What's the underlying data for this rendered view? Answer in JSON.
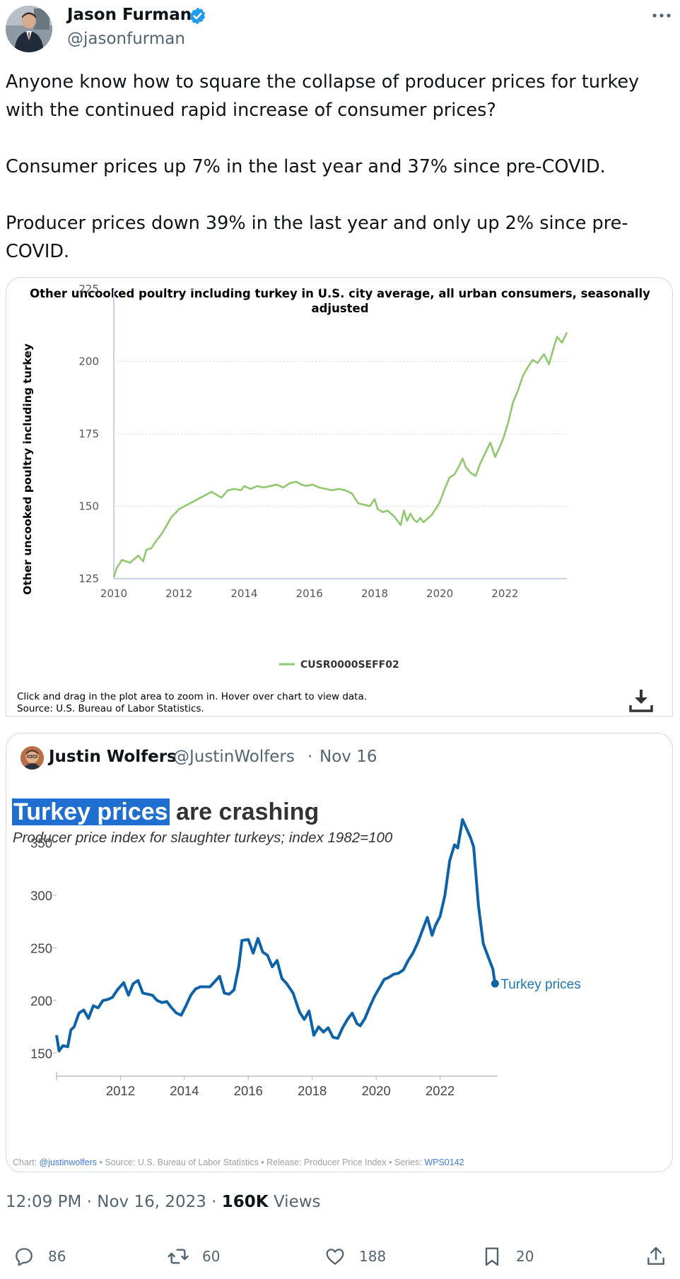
{
  "author": {
    "name": "Jason Furman",
    "handle": "@jasonfurman",
    "verified": true,
    "badge_color": "#1d9bf0"
  },
  "tweet": {
    "paragraphs": [
      "Anyone know how to square the collapse of producer prices for turkey with the continued rapid increase of consumer prices?",
      "Consumer prices up 7% in the last year and 37% since pre-COVID.",
      "Producer prices down 39% in the last year and only up 2% since pre-COVID."
    ]
  },
  "media": {
    "note_line1": "Click and drag in the plot area to zoom in. Hover over chart to view data.",
    "note_line2": "Source: U.S. Bureau of Labor Statistics.",
    "download_icon": "download-icon"
  },
  "quote": {
    "name": "Justin Wolfers",
    "handle": "@JustinWolfers",
    "separator": "·",
    "date": "Nov 16",
    "title_highlight": "Turkey prices",
    "title_rest": " are crashing",
    "subtitle": "Producer price index for slaughter turkeys; index 1982=100",
    "footer_chart_label": "Chart: ",
    "footer_chart_link": "@justinwolfers",
    "footer_middle": " • Source: U.S. Bureau of Labor Statistics • Release: Producer Price Index • Series: ",
    "footer_series_link": "WPS0142"
  },
  "meta": {
    "timestamp": "12:09 PM · Nov 16, 2023 · ",
    "views_count": "160K",
    "views_label": " Views"
  },
  "actions": {
    "replies": "86",
    "reposts": "60",
    "likes": "188",
    "bookmarks": "20"
  },
  "chart_data": [
    {
      "type": "line",
      "title": "Other uncooked poultry including turkey in U.S. city average, all urban consumers, seasonally adjusted",
      "ylabel": "Other uncooked poultry including turkey",
      "xlabel": "",
      "x_ticks": [
        2010,
        2012,
        2014,
        2016,
        2018,
        2020,
        2022
      ],
      "y_ticks": [
        125,
        150,
        175,
        200,
        225
      ],
      "xlim": [
        2010,
        2023.9
      ],
      "ylim": [
        125,
        225
      ],
      "grid": true,
      "legend": "bottom",
      "color": "#90c86e",
      "series": [
        {
          "name": "CUSR0000SEFF02",
          "x": [
            2010.0,
            2010.08,
            2010.25,
            2010.5,
            2010.75,
            2010.9,
            2011.0,
            2011.15,
            2011.3,
            2011.5,
            2011.75,
            2012.0,
            2012.25,
            2012.5,
            2012.75,
            2013.0,
            2013.15,
            2013.3,
            2013.5,
            2013.7,
            2013.9,
            2014.0,
            2014.2,
            2014.4,
            2014.6,
            2014.8,
            2015.0,
            2015.2,
            2015.4,
            2015.6,
            2015.75,
            2015.9,
            2016.1,
            2016.3,
            2016.5,
            2016.7,
            2016.9,
            2017.1,
            2017.3,
            2017.5,
            2017.7,
            2017.85,
            2018.0,
            2018.1,
            2018.25,
            2018.4,
            2018.6,
            2018.8,
            2018.9,
            2019.0,
            2019.1,
            2019.2,
            2019.3,
            2019.4,
            2019.5,
            2019.6,
            2019.75,
            2019.9,
            2020.0,
            2020.15,
            2020.3,
            2020.45,
            2020.6,
            2020.7,
            2020.8,
            2020.95,
            2021.1,
            2021.25,
            2021.4,
            2021.55,
            2021.7,
            2021.8,
            2021.95,
            2022.1,
            2022.25,
            2022.4,
            2022.55,
            2022.7,
            2022.85,
            2023.0,
            2023.2,
            2023.35,
            2023.5,
            2023.6,
            2023.75,
            2023.9
          ],
          "y": [
            125.5,
            128.5,
            131.5,
            130.5,
            133.0,
            131.0,
            135.0,
            135.5,
            138.0,
            141.0,
            146.0,
            149.0,
            150.5,
            152.0,
            153.5,
            155.0,
            154.0,
            153.0,
            155.5,
            156.0,
            155.5,
            157.0,
            156.0,
            157.0,
            156.5,
            157.0,
            157.5,
            156.5,
            158.0,
            158.5,
            157.5,
            157.0,
            157.5,
            156.5,
            156.0,
            155.5,
            156.0,
            155.5,
            154.5,
            151.0,
            150.5,
            150.0,
            152.5,
            149.0,
            148.0,
            148.5,
            146.5,
            143.5,
            148.5,
            145.0,
            147.5,
            145.5,
            144.5,
            146.0,
            144.5,
            145.5,
            147.0,
            149.5,
            151.5,
            156.0,
            160.0,
            161.0,
            164.0,
            166.5,
            163.5,
            161.5,
            160.5,
            165.0,
            168.5,
            172.0,
            167.0,
            169.5,
            173.5,
            179.0,
            186.0,
            190.0,
            195.0,
            198.0,
            200.5,
            199.5,
            202.5,
            199.0,
            205.0,
            208.5,
            206.5,
            210.0
          ]
        }
      ]
    },
    {
      "type": "line",
      "title": "Turkey prices are crashing",
      "subtitle": "Producer price index for slaughter turkeys; index 1982=100",
      "xlabel": "",
      "ylabel": "",
      "x_ticks": [
        2012,
        2014,
        2016,
        2018,
        2020,
        2022
      ],
      "y_ticks": [
        150,
        200,
        250,
        300,
        350
      ],
      "xlim": [
        2010,
        2023.8
      ],
      "ylim": [
        128,
        380
      ],
      "grid": false,
      "color": "#0d62a8",
      "end_label": "Turkey prices",
      "series": [
        {
          "name": "Turkey prices",
          "x": [
            2010.0,
            2010.08,
            2010.2,
            2010.35,
            2010.45,
            2010.55,
            2010.7,
            2010.85,
            2011.0,
            2011.15,
            2011.3,
            2011.45,
            2011.6,
            2011.75,
            2011.9,
            2012.1,
            2012.25,
            2012.4,
            2012.55,
            2012.7,
            2012.85,
            2013.0,
            2013.15,
            2013.3,
            2013.45,
            2013.6,
            2013.75,
            2013.9,
            2014.05,
            2014.2,
            2014.35,
            2014.5,
            2014.65,
            2014.8,
            2014.95,
            2015.1,
            2015.25,
            2015.4,
            2015.55,
            2015.7,
            2015.8,
            2016.0,
            2016.15,
            2016.3,
            2016.45,
            2016.6,
            2016.75,
            2016.9,
            2017.05,
            2017.2,
            2017.4,
            2017.6,
            2017.75,
            2017.9,
            2018.05,
            2018.2,
            2018.35,
            2018.5,
            2018.65,
            2018.8,
            2018.95,
            2019.1,
            2019.25,
            2019.4,
            2019.5,
            2019.65,
            2019.8,
            2019.95,
            2020.1,
            2020.25,
            2020.4,
            2020.55,
            2020.7,
            2020.85,
            2021.0,
            2021.15,
            2021.3,
            2021.45,
            2021.6,
            2021.75,
            2021.85,
            2022.0,
            2022.15,
            2022.3,
            2022.45,
            2022.55,
            2022.7,
            2022.85,
            2022.95,
            2023.05,
            2023.2,
            2023.35,
            2023.5,
            2023.65,
            2023.72
          ],
          "y": [
            167,
            152,
            157,
            156,
            172,
            175,
            188,
            191,
            183,
            195,
            193,
            200,
            201,
            203,
            210,
            217,
            205,
            216,
            219,
            207,
            206,
            205,
            200,
            198,
            199,
            193,
            188,
            186,
            195,
            205,
            211,
            213,
            213,
            213,
            218,
            223,
            207,
            206,
            210,
            232,
            257,
            258,
            245,
            259,
            246,
            243,
            232,
            238,
            221,
            216,
            207,
            189,
            182,
            190,
            167,
            175,
            170,
            174,
            165,
            164,
            174,
            182,
            188,
            178,
            176,
            183,
            194,
            204,
            212,
            220,
            222,
            225,
            226,
            229,
            238,
            245,
            255,
            267,
            279,
            262,
            271,
            280,
            300,
            333,
            348,
            345,
            372,
            362,
            355,
            346,
            290,
            254,
            242,
            230,
            216
          ]
        }
      ]
    }
  ]
}
